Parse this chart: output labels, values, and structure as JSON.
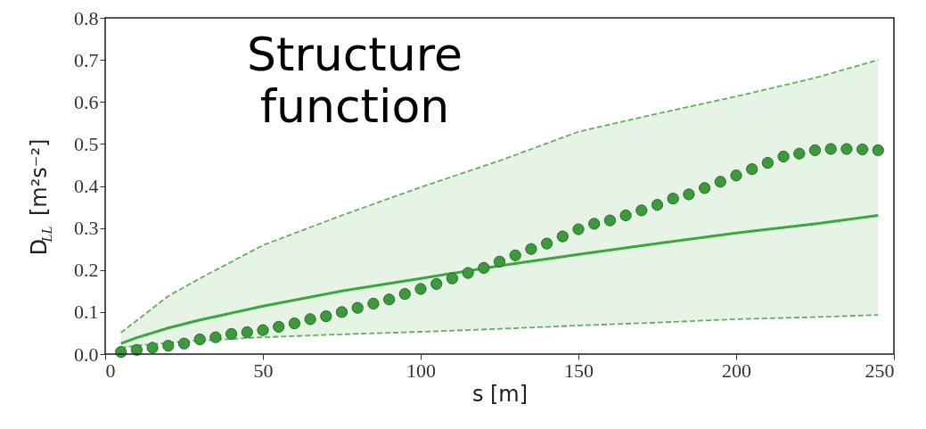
{
  "chart_data": {
    "type": "scatter",
    "title": "Structure function",
    "xlabel": "s [m]",
    "ylabel": "D$_{LL}$ [m²s⁻²]",
    "xlim": [
      0,
      250
    ],
    "ylim": [
      0,
      0.8
    ],
    "xticks": [
      0,
      50,
      100,
      150,
      200,
      250
    ],
    "yticks": [
      {
        "value": 0,
        "label": "0.0"
      },
      {
        "value": 0.1,
        "label": "0.1"
      },
      {
        "value": 0.2,
        "label": "0.2"
      },
      {
        "value": 0.3,
        "label": "0.3"
      },
      {
        "value": 0.4,
        "label": "0.4"
      },
      {
        "value": 0.5,
        "label": "0.5"
      },
      {
        "value": 0.6,
        "label": "0.6"
      },
      {
        "value": 0.7,
        "label": "0.7"
      },
      {
        "value": 0.8,
        "label": "0.8"
      }
    ],
    "grid": false,
    "series": [
      {
        "type": "line",
        "color": "#3aa83a",
        "line_style": "solid",
        "marker": "none",
        "x": [
          5,
          10,
          20,
          30,
          50,
          75,
          100,
          125,
          150,
          175,
          200,
          225,
          245
        ],
        "values": [
          0.025,
          0.039,
          0.062,
          0.081,
          0.114,
          0.15,
          0.18,
          0.21,
          0.237,
          0.263,
          0.288,
          0.31,
          0.33
        ],
        "lower": [
          0.015,
          0.02,
          0.027,
          0.032,
          0.04,
          0.047,
          0.053,
          0.06,
          0.068,
          0.075,
          0.083,
          0.088,
          0.093
        ],
        "upper": [
          0.051,
          0.08,
          0.138,
          0.18,
          0.259,
          0.33,
          0.397,
          0.46,
          0.529,
          0.572,
          0.613,
          0.657,
          0.7
        ]
      },
      {
        "type": "line",
        "color": "#5fb05f",
        "line_style": "dashed",
        "marker": "none",
        "x": [
          5,
          10,
          20,
          30,
          50,
          75,
          100,
          125,
          150,
          175,
          200,
          225,
          245
        ],
        "values": [
          0.015,
          0.02,
          0.027,
          0.032,
          0.04,
          0.047,
          0.053,
          0.06,
          0.068,
          0.075,
          0.083,
          0.088,
          0.093
        ]
      },
      {
        "type": "line",
        "color": "#5fb05f",
        "line_style": "dashed",
        "marker": "none",
        "x": [
          5,
          10,
          20,
          30,
          50,
          75,
          100,
          125,
          150,
          175,
          200,
          225,
          245
        ],
        "values": [
          0.051,
          0.08,
          0.138,
          0.18,
          0.259,
          0.33,
          0.397,
          0.46,
          0.529,
          0.572,
          0.613,
          0.657,
          0.7
        ]
      },
      {
        "color": "#3c9a3c",
        "marker": "circle",
        "x": [
          5,
          10,
          15,
          20,
          25,
          30,
          35,
          40,
          45,
          50,
          55,
          60,
          65,
          70,
          75,
          80,
          85,
          90,
          95,
          100,
          105,
          110,
          115,
          120,
          125,
          130,
          135,
          140,
          145,
          150,
          155,
          160,
          165,
          170,
          175,
          180,
          185,
          190,
          195,
          200,
          205,
          210,
          215,
          220,
          225,
          230,
          235,
          240,
          245
        ],
        "values": [
          0.005,
          0.01,
          0.015,
          0.02,
          0.025,
          0.035,
          0.04,
          0.048,
          0.052,
          0.057,
          0.065,
          0.073,
          0.083,
          0.09,
          0.1,
          0.11,
          0.12,
          0.13,
          0.143,
          0.155,
          0.167,
          0.18,
          0.193,
          0.205,
          0.22,
          0.235,
          0.25,
          0.263,
          0.28,
          0.297,
          0.31,
          0.318,
          0.33,
          0.342,
          0.355,
          0.37,
          0.38,
          0.395,
          0.41,
          0.425,
          0.44,
          0.455,
          0.47,
          0.477,
          0.485,
          0.488,
          0.488,
          0.487,
          0.485
        ]
      }
    ]
  }
}
